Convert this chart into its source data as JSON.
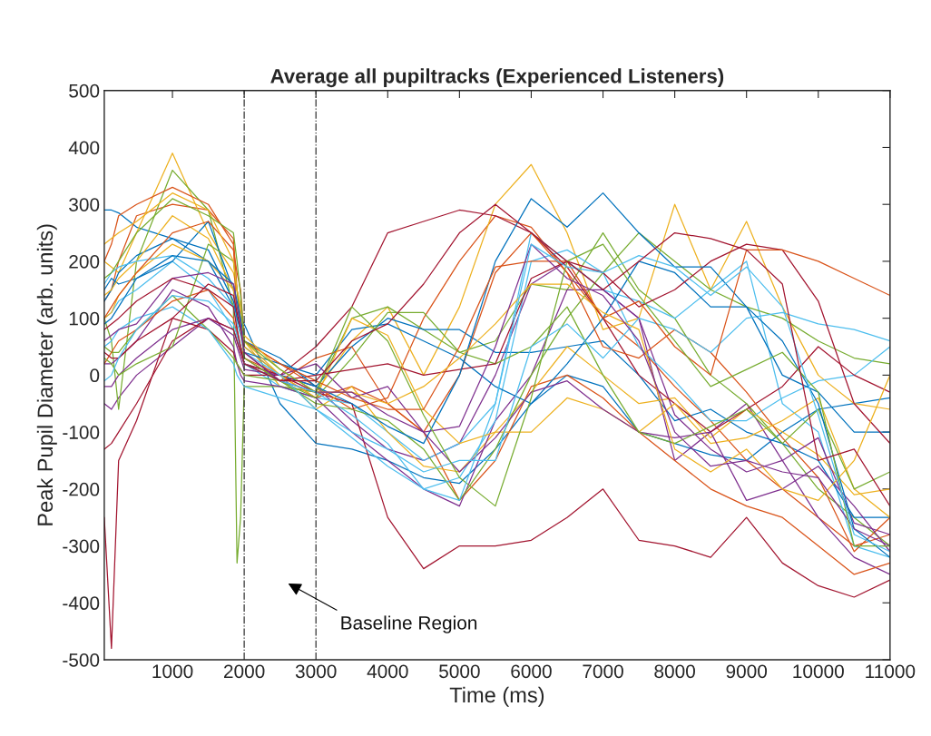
{
  "chart_data": {
    "type": "line",
    "title": "Average all pupiltracks (Experienced Listeners)",
    "xlabel": "Time (ms)",
    "ylabel": "Peak Pupil Diameter (arb. units)",
    "x": [
      50,
      150,
      250,
      500,
      1000,
      1500,
      1850,
      1900,
      1950,
      2000,
      2500,
      3000,
      3500,
      4000,
      4500,
      5000,
      5500,
      6000,
      6500,
      7000,
      7500,
      8000,
      8500,
      9000,
      9500,
      10000,
      10500,
      11000
    ],
    "xlim": [
      50,
      11000
    ],
    "ylim": [
      -500,
      500
    ],
    "xticks": [
      1000,
      2000,
      3000,
      4000,
      5000,
      6000,
      7000,
      8000,
      9000,
      10000,
      11000
    ],
    "yticks": [
      -500,
      -400,
      -300,
      -200,
      -100,
      0,
      100,
      200,
      300,
      400,
      500
    ],
    "grid": false,
    "marker": "none",
    "line_style": "solid",
    "ref_lines": [
      {
        "axis": "x",
        "value": 2000,
        "color": "#333333",
        "line_style": "dashdot"
      },
      {
        "axis": "x",
        "value": 3000,
        "color": "#333333",
        "line_style": "dashdot"
      }
    ],
    "annotations": [
      "Baseline Region"
    ],
    "series": [
      {
        "color": "#0072BD",
        "values": [
          290,
          290,
          285,
          260,
          240,
          200,
          120,
          110,
          100,
          90,
          -50,
          -120,
          -130,
          -150,
          -180,
          -190,
          -130,
          -50,
          0,
          -20,
          -100,
          -120,
          -140,
          -150,
          -100,
          -60,
          -50,
          -40
        ]
      },
      {
        "color": "#D95319",
        "values": [
          130,
          150,
          200,
          280,
          300,
          290,
          240,
          150,
          100,
          60,
          20,
          -20,
          -60,
          -40,
          100,
          200,
          280,
          260,
          180,
          100,
          50,
          -20,
          -80,
          -150,
          -200,
          -250,
          -300,
          -280
        ]
      },
      {
        "color": "#EDB120",
        "values": [
          200,
          190,
          180,
          250,
          390,
          250,
          180,
          150,
          120,
          60,
          -20,
          -30,
          60,
          120,
          0,
          120,
          300,
          370,
          250,
          80,
          100,
          300,
          150,
          270,
          120,
          0,
          -50,
          -60
        ]
      },
      {
        "color": "#7E2F8E",
        "values": [
          -50,
          -60,
          -40,
          0,
          50,
          100,
          80,
          60,
          40,
          20,
          0,
          -20,
          -80,
          -130,
          -150,
          -120,
          0,
          160,
          200,
          150,
          100,
          -150,
          -100,
          -50,
          -150,
          -250,
          -320,
          -350
        ]
      },
      {
        "color": "#77AC30",
        "values": [
          100,
          60,
          -60,
          200,
          360,
          290,
          120,
          -330,
          -250,
          -20,
          -20,
          -30,
          100,
          120,
          80,
          40,
          60,
          160,
          150,
          250,
          150,
          100,
          0,
          -50,
          -120,
          -200,
          -250,
          -300
        ]
      },
      {
        "color": "#4DBEEE",
        "values": [
          100,
          110,
          130,
          150,
          200,
          150,
          80,
          60,
          50,
          20,
          -20,
          -40,
          -50,
          -100,
          -150,
          -120,
          -50,
          250,
          200,
          150,
          130,
          100,
          150,
          200,
          -50,
          -100,
          -300,
          -320
        ]
      },
      {
        "color": "#A2142F",
        "values": [
          -250,
          -480,
          -150,
          -80,
          100,
          80,
          40,
          20,
          10,
          0,
          0,
          -30,
          -50,
          -250,
          -340,
          -300,
          -300,
          -290,
          -250,
          -200,
          -290,
          -300,
          -320,
          -250,
          -330,
          -370,
          -390,
          -360
        ]
      },
      {
        "color": "#0072BD",
        "values": [
          150,
          170,
          160,
          170,
          200,
          270,
          150,
          100,
          80,
          50,
          0,
          -20,
          50,
          100,
          80,
          80,
          40,
          40,
          50,
          60,
          0,
          -80,
          -60,
          -100,
          -120,
          -150,
          -250,
          -250
        ]
      },
      {
        "color": "#D95319",
        "values": [
          200,
          230,
          280,
          300,
          330,
          300,
          230,
          80,
          50,
          30,
          0,
          -40,
          -20,
          -50,
          -100,
          -220,
          -150,
          -20,
          0,
          -40,
          -100,
          -150,
          -200,
          -230,
          -250,
          -300,
          -350,
          -330
        ]
      },
      {
        "color": "#EDB120",
        "values": [
          100,
          110,
          140,
          180,
          230,
          200,
          150,
          120,
          90,
          50,
          0,
          -60,
          -20,
          -100,
          -160,
          -170,
          -100,
          -30,
          50,
          0,
          -50,
          -40,
          -110,
          -60,
          -100,
          -140,
          -210,
          -200
        ]
      },
      {
        "color": "#7E2F8E",
        "values": [
          20,
          20,
          30,
          60,
          150,
          120,
          50,
          20,
          0,
          -10,
          -20,
          -40,
          -100,
          -150,
          -200,
          -230,
          -80,
          0,
          150,
          150,
          100,
          -70,
          -130,
          -170,
          -150,
          -110,
          -260,
          -280
        ]
      },
      {
        "color": "#77AC30",
        "values": [
          50,
          40,
          40,
          80,
          140,
          80,
          30,
          20,
          10,
          0,
          -10,
          -50,
          -60,
          -80,
          -130,
          -220,
          -130,
          0,
          100,
          180,
          250,
          200,
          150,
          120,
          100,
          60,
          30,
          20
        ]
      },
      {
        "color": "#4DBEEE",
        "values": [
          50,
          60,
          80,
          100,
          120,
          80,
          20,
          0,
          -10,
          -20,
          -40,
          -60,
          -110,
          -160,
          -200,
          -180,
          -80,
          200,
          220,
          180,
          50,
          -10,
          -80,
          -80,
          -40,
          -10,
          0,
          50
        ]
      },
      {
        "color": "#A2142F",
        "values": [
          -130,
          -120,
          -100,
          -50,
          60,
          100,
          80,
          60,
          40,
          20,
          0,
          50,
          120,
          250,
          270,
          290,
          280,
          250,
          190,
          100,
          0,
          -50,
          -100,
          -60,
          -20,
          50,
          0,
          -30
        ]
      },
      {
        "color": "#0072BD",
        "values": [
          130,
          150,
          180,
          210,
          240,
          220,
          130,
          100,
          80,
          40,
          20,
          0,
          80,
          90,
          60,
          30,
          -20,
          -50,
          20,
          100,
          200,
          180,
          120,
          120,
          0,
          -30,
          -100,
          -100
        ]
      },
      {
        "color": "#D95319",
        "values": [
          20,
          40,
          60,
          80,
          130,
          150,
          100,
          70,
          50,
          30,
          -10,
          30,
          50,
          -50,
          -100,
          0,
          180,
          250,
          180,
          50,
          30,
          80,
          40,
          -30,
          -110,
          -180,
          -310,
          -250
        ]
      },
      {
        "color": "#EDB120",
        "values": [
          140,
          150,
          170,
          200,
          280,
          240,
          150,
          120,
          100,
          60,
          0,
          -40,
          100,
          70,
          -60,
          -120,
          -100,
          -100,
          -40,
          -60,
          -100,
          -50,
          -120,
          -110,
          -80,
          -40,
          -200,
          -250
        ]
      },
      {
        "color": "#7E2F8E",
        "values": [
          -20,
          -20,
          0,
          30,
          80,
          100,
          70,
          50,
          30,
          10,
          0,
          20,
          -40,
          -20,
          -100,
          -170,
          -110,
          -30,
          -10,
          -60,
          -100,
          -110,
          -100,
          -220,
          -200,
          -160,
          -230,
          -310
        ]
      },
      {
        "color": "#77AC30",
        "values": [
          30,
          20,
          0,
          20,
          50,
          230,
          200,
          150,
          80,
          30,
          -10,
          -40,
          30,
          110,
          110,
          40,
          20,
          50,
          120,
          0,
          -100,
          -120,
          -90,
          -60,
          -120,
          -60,
          -200,
          -170
        ]
      },
      {
        "color": "#4DBEEE",
        "values": [
          160,
          180,
          190,
          200,
          210,
          170,
          120,
          90,
          70,
          40,
          0,
          -60,
          -100,
          -130,
          -170,
          -150,
          -150,
          50,
          90,
          30,
          100,
          80,
          40,
          100,
          110,
          90,
          80,
          60
        ]
      },
      {
        "color": "#A2142F",
        "values": [
          40,
          30,
          30,
          60,
          100,
          160,
          140,
          110,
          80,
          40,
          -10,
          0,
          10,
          20,
          0,
          10,
          20,
          170,
          200,
          180,
          120,
          150,
          200,
          230,
          220,
          130,
          -50,
          -120
        ]
      },
      {
        "color": "#0072BD",
        "values": [
          90,
          100,
          120,
          170,
          210,
          200,
          160,
          130,
          100,
          60,
          30,
          -20,
          -50,
          -90,
          -120,
          0,
          200,
          310,
          260,
          320,
          250,
          190,
          190,
          120,
          60,
          -50,
          -270,
          -320
        ]
      },
      {
        "color": "#D95319",
        "values": [
          100,
          120,
          140,
          180,
          250,
          270,
          220,
          180,
          150,
          60,
          20,
          -10,
          -40,
          -60,
          -60,
          50,
          190,
          200,
          200,
          100,
          130,
          50,
          0,
          220,
          220,
          200,
          170,
          140
        ]
      },
      {
        "color": "#EDB120",
        "values": [
          230,
          240,
          250,
          270,
          320,
          290,
          200,
          150,
          120,
          70,
          10,
          -30,
          -30,
          -50,
          -20,
          30,
          90,
          160,
          160,
          110,
          80,
          -130,
          -170,
          -130,
          -200,
          -220,
          -150,
          0
        ]
      },
      {
        "color": "#7E2F8E",
        "values": [
          60,
          70,
          80,
          90,
          170,
          180,
          160,
          120,
          90,
          40,
          -10,
          -30,
          -30,
          -70,
          -100,
          -90,
          50,
          230,
          170,
          140,
          60,
          -100,
          -160,
          -150,
          -170,
          -180,
          -270,
          -300
        ]
      },
      {
        "color": "#77AC30",
        "values": [
          170,
          180,
          200,
          250,
          310,
          280,
          250,
          200,
          140,
          60,
          10,
          -30,
          120,
          60,
          -70,
          -180,
          -230,
          -40,
          200,
          230,
          140,
          60,
          -20,
          10,
          40,
          -30,
          -300,
          -300
        ]
      },
      {
        "color": "#4DBEEE",
        "values": [
          -10,
          0,
          30,
          80,
          140,
          130,
          90,
          70,
          50,
          20,
          -10,
          -30,
          -70,
          -120,
          -200,
          -220,
          -50,
          230,
          190,
          180,
          210,
          190,
          140,
          190,
          120,
          -70,
          -280,
          -310
        ]
      },
      {
        "color": "#A2142F",
        "values": [
          80,
          90,
          100,
          130,
          170,
          150,
          120,
          80,
          50,
          20,
          -10,
          -10,
          60,
          90,
          160,
          250,
          300,
          250,
          200,
          150,
          200,
          250,
          240,
          220,
          160,
          -150,
          -130,
          -230
        ]
      }
    ]
  }
}
